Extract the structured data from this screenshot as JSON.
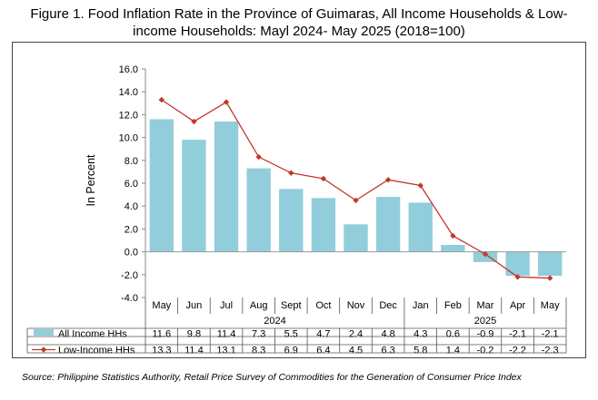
{
  "title_line1": "Figure 1. Food Inflation Rate in the Province of Guimaras, All Income Households & Low-",
  "title_line2": "income Households: Mayl 2024- May 2025 (2018=100)",
  "source": "Source: Philippine Statistics Authority, Retail Price Survey of Commodities for the Generation of Consumer Price Index",
  "chart_data": {
    "type": "bar",
    "ylabel": "In Percent",
    "ylim": [
      -4.0,
      16.0
    ],
    "ytick_step": 2.0,
    "yticks": [
      "16.0",
      "14.0",
      "12.0",
      "10.0",
      "8.0",
      "6.0",
      "4.0",
      "2.0",
      "0.0",
      "-2.0",
      "-4.0"
    ],
    "categories": [
      "May",
      "Jun",
      "Jul",
      "Aug",
      "Sept",
      "Oct",
      "Nov",
      "Dec",
      "Jan",
      "Feb",
      "Mar",
      "Apr",
      "May"
    ],
    "year_groups": [
      {
        "label": "2024",
        "count": 8
      },
      {
        "label": "2025",
        "count": 5
      }
    ],
    "series": [
      {
        "name": "All Income HHs",
        "type": "bar",
        "color": "#92CDDC",
        "values": [
          11.6,
          9.8,
          11.4,
          7.3,
          5.5,
          4.7,
          2.4,
          4.8,
          4.3,
          0.6,
          -0.9,
          -2.1,
          -2.1
        ],
        "labels": [
          "11.6",
          "9.8",
          "11.4",
          "7.3",
          "5.5",
          "4.7",
          "2.4",
          "4.8",
          "4.3",
          "0.6",
          "-0.9",
          "-2.1",
          "-2.1"
        ]
      },
      {
        "name": "Low-Income HHs",
        "type": "line",
        "color": "#C0392B",
        "values": [
          13.3,
          11.4,
          13.1,
          8.3,
          6.9,
          6.4,
          4.5,
          6.3,
          5.8,
          1.4,
          -0.2,
          -2.2,
          -2.3
        ],
        "labels": [
          "13.3",
          "11.4",
          "13.1",
          "8.3",
          "6.9",
          "6.4",
          "4.5",
          "6.3",
          "5.8",
          "1.4",
          "-0.2",
          "-2.2",
          "-2.3"
        ]
      }
    ],
    "grid": false,
    "legend": "data-table"
  }
}
